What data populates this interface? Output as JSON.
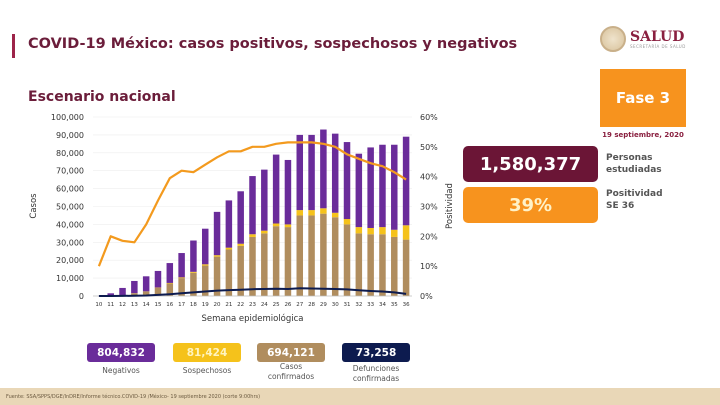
{
  "header": {
    "title": "COVID-19 México: casos positivos, sospechosos y negativos",
    "subtitle": "Escenario nacional",
    "logo_text": "SALUD",
    "logo_subtext": "SECRETARÍA DE SALUD"
  },
  "side": {
    "phase": "Fase 3",
    "date": "19 septiembre, 2020",
    "personas_value": "1,580,377",
    "personas_label_1": "Personas",
    "personas_label_2": "estudiadas",
    "positividad_value": "39%",
    "positividad_label_1": "Positividad",
    "positividad_label_2": "SE 36"
  },
  "stats": [
    {
      "value": "804,832",
      "label": "Negativos",
      "color": "#6a2c9a"
    },
    {
      "value": "81,424",
      "label": "Sospechosos",
      "color": "#f5c21b"
    },
    {
      "value": "694,121",
      "label": "Casos confirmados",
      "color": "#b08d5e"
    },
    {
      "value": "73,258",
      "label": "Defunciones confirmadas",
      "color": "#0d1b4f"
    }
  ],
  "footer": "Fuente: SSA/SPPS/DGE/InDRE/Informe técnico.COVID-19 /México- 19 septiembre 2020 (corte 9:00hrs)",
  "chart_data": {
    "type": "bar",
    "stacked": true,
    "xlabel": "Semana epidemiológica",
    "ylabel": "Casos",
    "y2label": "Positividad",
    "ylim": [
      0,
      100000
    ],
    "y2lim": [
      0,
      60
    ],
    "yticks": [
      "0",
      "10,000",
      "20,000",
      "30,000",
      "40,000",
      "50,000",
      "60,000",
      "70,000",
      "80,000",
      "90,000",
      "100,000"
    ],
    "y2ticks": [
      "0%",
      "10%",
      "20%",
      "30%",
      "40%",
      "50%",
      "60%"
    ],
    "categories": [
      "10",
      "11",
      "12",
      "13",
      "14",
      "15",
      "16",
      "17",
      "18",
      "19",
      "20",
      "21",
      "22",
      "23",
      "24",
      "25",
      "26",
      "27",
      "28",
      "29",
      "30",
      "31",
      "32",
      "33",
      "34",
      "35",
      "36"
    ],
    "series": [
      {
        "key": "confirmados",
        "color": "#b08d5e",
        "values": [
          0,
          300,
          500,
          1500,
          2500,
          4500,
          7000,
          10000,
          13000,
          17000,
          22000,
          26000,
          28000,
          33000,
          35000,
          39000,
          38500,
          45000,
          45000,
          46000,
          44000,
          40000,
          35000,
          34500,
          34500,
          33000,
          31500
        ]
      },
      {
        "key": "sospechosos",
        "color": "#f5c21b",
        "values": [
          0,
          0,
          0,
          100,
          100,
          200,
          300,
          400,
          500,
          700,
          800,
          1000,
          1200,
          1500,
          1500,
          1500,
          1500,
          3000,
          3000,
          3000,
          2500,
          3000,
          3500,
          3500,
          4000,
          4000,
          8000
        ]
      },
      {
        "key": "negativos",
        "color": "#6a2c9a",
        "values": [
          0,
          1200,
          4000,
          6800,
          8400,
          9300,
          11100,
          13600,
          17500,
          19900,
          24200,
          26400,
          29300,
          32500,
          34100,
          38500,
          36000,
          42000,
          42000,
          44000,
          44200,
          43000,
          41000,
          45000,
          46000,
          47500,
          49500
        ]
      },
      {
        "key": "defunciones",
        "type": "line",
        "color": "#0d1b4f",
        "values": [
          0,
          0,
          50,
          150,
          300,
          600,
          1000,
          1500,
          2000,
          2500,
          3000,
          3300,
          3500,
          3800,
          3900,
          4000,
          3900,
          4300,
          4200,
          4100,
          3900,
          3700,
          3200,
          2800,
          2500,
          2000,
          1200
        ]
      },
      {
        "key": "positividad",
        "type": "line",
        "axis": "y2",
        "color": "#f39a1e",
        "values": [
          10,
          20,
          18.5,
          18,
          24,
          32,
          39.5,
          42,
          41.5,
          44,
          46.5,
          48.5,
          48.5,
          50,
          50,
          51,
          51.5,
          51.5,
          51.5,
          51,
          50,
          47.5,
          46,
          44.5,
          43.5,
          41.5,
          39
        ]
      }
    ]
  }
}
